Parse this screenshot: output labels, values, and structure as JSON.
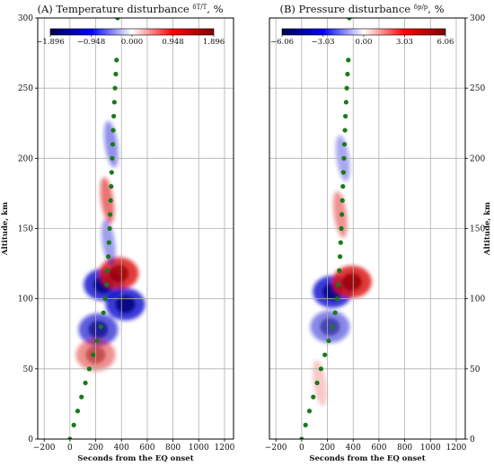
{
  "chart_data": [
    {
      "type": "heatmap",
      "title": "(A) Temperature disturbance δT/T, %",
      "title_parts": {
        "prefix": "(A) Temperature disturbance ",
        "num": "δT",
        "den": "T",
        "unit": ", %"
      },
      "xlabel": "Seconds from the EQ onset",
      "ylabel": "Altitude, km",
      "xlim": [
        -250,
        1270
      ],
      "ylim": [
        0,
        300
      ],
      "xticks": [
        "−200",
        "0",
        "200",
        "400",
        "600",
        "800",
        "1000",
        "1200"
      ],
      "xtick_values": [
        -200,
        0,
        200,
        400,
        600,
        800,
        1000,
        1200
      ],
      "yticks": [
        "0",
        "50",
        "100",
        "150",
        "200",
        "250",
        "300"
      ],
      "ytick_values": [
        0,
        50,
        100,
        150,
        200,
        250,
        300
      ],
      "grid": true,
      "colormap": "seismic (blue-white-red)",
      "colorbar": {
        "location": "top-inset",
        "min": -1.896,
        "max": 1.896,
        "ticks": [
          "−1.896",
          "−0.948",
          "0.000",
          "0.948",
          "1.896"
        ]
      },
      "features": [
        {
          "type": "dipole",
          "x": 260,
          "y": 110,
          "sign": "negative",
          "strength": 1.0
        },
        {
          "type": "dipole",
          "x": 380,
          "y": 118,
          "sign": "positive",
          "strength": 0.95
        },
        {
          "type": "dipole",
          "x": 430,
          "y": 96,
          "sign": "negative",
          "strength": 1.0
        },
        {
          "type": "dipole",
          "x": 220,
          "y": 78,
          "sign": "negative",
          "strength": 0.8
        },
        {
          "type": "dipole",
          "x": 200,
          "y": 60,
          "sign": "positive",
          "strength": 0.55
        },
        {
          "type": "stripe",
          "x": 290,
          "y": 170,
          "sign": "positive",
          "strength": 0.7
        },
        {
          "type": "stripe",
          "x": 320,
          "y": 210,
          "sign": "negative",
          "strength": 0.55
        },
        {
          "type": "stripe",
          "x": 300,
          "y": 140,
          "sign": "negative",
          "strength": 0.5
        }
      ],
      "series": [
        {
          "marker": "green circles",
          "x": [
            0,
            30,
            60,
            90,
            120,
            150,
            180,
            210,
            240,
            260,
            275,
            285,
            292,
            298,
            303,
            308,
            312,
            316,
            320,
            324,
            328,
            332,
            336,
            340,
            345,
            350,
            356,
            362,
            370
          ],
          "y": [
            0,
            10,
            20,
            30,
            40,
            50,
            60,
            70,
            80,
            90,
            100,
            110,
            120,
            130,
            140,
            150,
            160,
            170,
            180,
            190,
            200,
            210,
            220,
            230,
            240,
            250,
            260,
            270,
            300
          ]
        }
      ]
    },
    {
      "type": "heatmap",
      "title": "(B) Pressure disturbance δp/p, %",
      "title_parts": {
        "prefix": "(B) Pressure disturbance ",
        "num": "δp",
        "den": "p",
        "unit": ", %"
      },
      "xlabel": "Seconds from the EQ onset",
      "ylabel": "Altitude, km",
      "xlim": [
        -250,
        1270
      ],
      "ylim": [
        0,
        300
      ],
      "xticks": [
        "−200",
        "0",
        "200",
        "400",
        "600",
        "800",
        "1000",
        "1200"
      ],
      "xtick_values": [
        -200,
        0,
        200,
        400,
        600,
        800,
        1000,
        1200
      ],
      "yticks": [
        "0",
        "50",
        "100",
        "150",
        "200",
        "250",
        "300"
      ],
      "ytick_values": [
        0,
        50,
        100,
        150,
        200,
        250,
        300
      ],
      "grid": true,
      "colormap": "seismic (blue-white-red)",
      "colorbar": {
        "location": "top-inset",
        "min": -6.06,
        "max": 6.06,
        "ticks": [
          "−6.06",
          "−3.03",
          "0.00",
          "3.03",
          "6.06"
        ]
      },
      "features": [
        {
          "type": "dipole",
          "x": 240,
          "y": 105,
          "sign": "negative",
          "strength": 1.0
        },
        {
          "type": "dipole",
          "x": 390,
          "y": 112,
          "sign": "positive",
          "strength": 1.0
        },
        {
          "type": "dipole",
          "x": 220,
          "y": 80,
          "sign": "negative",
          "strength": 0.6
        },
        {
          "type": "stripe",
          "x": 300,
          "y": 160,
          "sign": "positive",
          "strength": 0.55
        },
        {
          "type": "stripe",
          "x": 320,
          "y": 200,
          "sign": "negative",
          "strength": 0.45
        },
        {
          "type": "stripe",
          "x": 140,
          "y": 40,
          "sign": "positive",
          "strength": 0.25
        }
      ],
      "series": [
        {
          "marker": "green circles",
          "x": [
            0,
            30,
            60,
            90,
            120,
            150,
            180,
            210,
            240,
            260,
            275,
            285,
            292,
            298,
            303,
            308,
            312,
            316,
            320,
            324,
            328,
            332,
            336,
            340,
            345,
            350,
            356,
            362,
            370
          ],
          "y": [
            0,
            10,
            20,
            30,
            40,
            50,
            60,
            70,
            80,
            90,
            100,
            110,
            120,
            130,
            140,
            150,
            160,
            170,
            180,
            190,
            200,
            210,
            220,
            230,
            240,
            250,
            260,
            270,
            300
          ]
        }
      ]
    }
  ]
}
